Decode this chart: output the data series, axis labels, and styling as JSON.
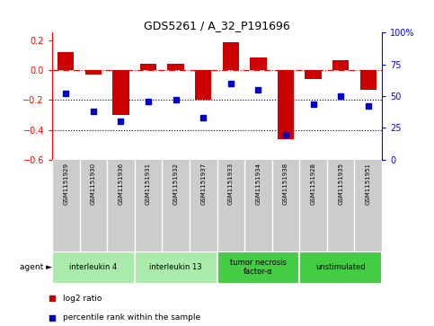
{
  "title": "GDS5261 / A_32_P191696",
  "samples": [
    "GSM1151929",
    "GSM1151930",
    "GSM1151936",
    "GSM1151931",
    "GSM1151932",
    "GSM1151937",
    "GSM1151933",
    "GSM1151934",
    "GSM1151938",
    "GSM1151928",
    "GSM1151935",
    "GSM1151951"
  ],
  "log2_ratio": [
    0.12,
    -0.03,
    -0.3,
    0.04,
    0.04,
    -0.2,
    0.185,
    0.085,
    -0.46,
    -0.06,
    0.065,
    -0.13
  ],
  "percentile": [
    52,
    38,
    30,
    46,
    47,
    33,
    60,
    55,
    20,
    44,
    50,
    42
  ],
  "agents": [
    {
      "label": "interleukin 4",
      "start": 0,
      "end": 3,
      "color": "#aaeaaa"
    },
    {
      "label": "interleukin 13",
      "start": 3,
      "end": 6,
      "color": "#aaeaaa"
    },
    {
      "label": "tumor necrosis\nfactor-α",
      "start": 6,
      "end": 9,
      "color": "#44cc44"
    },
    {
      "label": "unstimulated",
      "start": 9,
      "end": 12,
      "color": "#44cc44"
    }
  ],
  "bar_color": "#cc0000",
  "dot_color": "#0000cc",
  "ylim_left": [
    -0.6,
    0.25
  ],
  "ylim_right": [
    0,
    100
  ],
  "yticks_left": [
    -0.6,
    -0.4,
    -0.2,
    0.0,
    0.2
  ],
  "yticks_right": [
    0,
    25,
    50,
    75,
    100
  ],
  "hline_y": 0.0,
  "dotted_lines": [
    -0.2,
    -0.4
  ],
  "plot_bg": "#ffffff",
  "sample_bg": "#cccccc",
  "legend_items": [
    "log2 ratio",
    "percentile rank within the sample"
  ]
}
